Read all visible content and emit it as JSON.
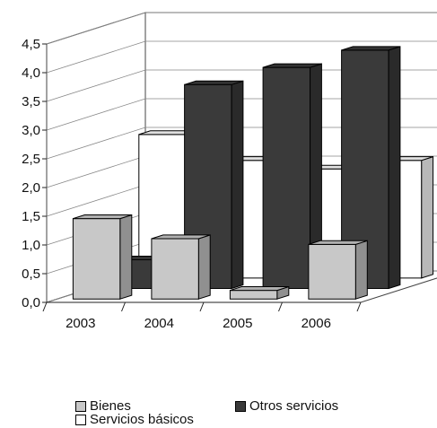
{
  "chart_data": {
    "type": "bar",
    "categories": [
      "2003",
      "2004",
      "2005",
      "2006"
    ],
    "series": [
      {
        "name": "Bienes",
        "values": [
          1.4,
          1.05,
          0.15,
          0.95
        ],
        "color": "#c8c8c8"
      },
      {
        "name": "Otros servicios",
        "values": [
          0.5,
          3.55,
          3.85,
          4.15
        ],
        "color": "#3a3a3a"
      },
      {
        "name": "Servicios básicos",
        "values": [
          2.5,
          2.05,
          1.9,
          2.05
        ],
        "color": "#ffffff"
      }
    ],
    "y_ticks": [
      "0,0",
      "0,5",
      "1,0",
      "1,5",
      "2,0",
      "2,5",
      "3,0",
      "3,5",
      "4,0",
      "4,5"
    ],
    "ylim": [
      0,
      4.5
    ],
    "grid": true,
    "legend_placement": "bottom",
    "style": "3d-column"
  }
}
